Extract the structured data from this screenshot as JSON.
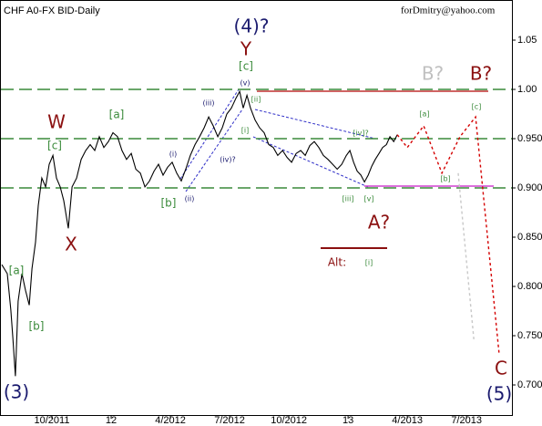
{
  "chart_data": {
    "type": "line",
    "title": "CHF A0-FX BID-Daily",
    "subtitle": "forDmitry@yahoo.com",
    "xlim": [
      -5.63,
      20.3
    ],
    "xticks": [
      {
        "value": -3,
        "label": "10/2011"
      },
      {
        "value": 0,
        "label": "12"
      },
      {
        "value": 3,
        "label": "4/2012"
      },
      {
        "value": 6,
        "label": "7/2012"
      },
      {
        "value": 9,
        "label": "10/2012"
      },
      {
        "value": 12,
        "label": "13"
      },
      {
        "value": 15,
        "label": "4/2013"
      },
      {
        "value": 18,
        "label": "7/2013"
      }
    ],
    "ylim": [
      0.67,
      1.09
    ],
    "yticks": [
      1.05,
      {
        "value": 1,
        "label": "1.00"
      },
      {
        "value": 0.95,
        "label": "0.950"
      },
      {
        "value": 0.9,
        "label": "0.900"
      },
      {
        "value": 0.85,
        "label": "0.850"
      },
      {
        "value": 0.8,
        "label": "0.800"
      },
      {
        "value": 0.75,
        "label": "0.750"
      },
      {
        "value": 0.7,
        "label": "0.700"
      }
    ],
    "levels": [
      1,
      0.95,
      0.9
    ],
    "level_color": "#3a8a3a",
    "series": [
      {
        "color": "#000000",
        "style": "solid",
        "x": [
          -5.54,
          -5.26,
          -5.08,
          -4.98,
          -4.85,
          -4.71,
          -4.52,
          -4.34,
          -4.15,
          -4.01,
          -3.83,
          -3.69,
          -3.51,
          -3.32,
          -3.14,
          -2.95,
          -2.77,
          -2.58,
          -2.4,
          -2.17,
          -1.98,
          -1.75,
          -1.52,
          -1.29,
          -1.06,
          -0.83,
          -0.6,
          -0.37,
          -0.14,
          0.09,
          0.32,
          0.55,
          0.78,
          1.02,
          1.25,
          1.48,
          1.71,
          1.94,
          2.17,
          2.4,
          2.63,
          2.86,
          3.09,
          3.32,
          3.55,
          3.78,
          4.01,
          4.25,
          4.48,
          4.71,
          4.94,
          5.17,
          5.4,
          5.63,
          5.86,
          6.09,
          6.32,
          6.51,
          6.69,
          6.88,
          7.06,
          7.29,
          7.52,
          7.75,
          7.98,
          8.21,
          8.44,
          8.68,
          8.91,
          9.14,
          9.37,
          9.6,
          9.83,
          10.06,
          10.29,
          10.52,
          10.75,
          10.98,
          11.22,
          11.45,
          11.68,
          11.91,
          12.09,
          12.28,
          12.46,
          12.65,
          12.83,
          13.02,
          13.2,
          13.38,
          13.57,
          13.75,
          13.94,
          14.12,
          14.31,
          14.49
        ],
        "values": [
          0.822,
          0.813,
          0.776,
          0.748,
          0.709,
          0.785,
          0.813,
          0.796,
          0.781,
          0.818,
          0.845,
          0.882,
          0.91,
          0.901,
          0.924,
          0.933,
          0.91,
          0.901,
          0.887,
          0.859,
          0.901,
          0.91,
          0.929,
          0.938,
          0.944,
          0.938,
          0.952,
          0.941,
          0.947,
          0.956,
          0.952,
          0.938,
          0.929,
          0.935,
          0.919,
          0.915,
          0.901,
          0.907,
          0.917,
          0.924,
          0.913,
          0.921,
          0.926,
          0.915,
          0.907,
          0.919,
          0.933,
          0.944,
          0.952,
          0.961,
          0.972,
          0.963,
          0.952,
          0.961,
          0.975,
          0.981,
          0.991,
          0.998,
          0.981,
          0.994,
          0.981,
          0.969,
          0.961,
          0.956,
          0.944,
          0.941,
          0.933,
          0.938,
          0.931,
          0.926,
          0.935,
          0.938,
          0.933,
          0.943,
          0.947,
          0.941,
          0.933,
          0.929,
          0.924,
          0.919,
          0.924,
          0.933,
          0.938,
          0.926,
          0.917,
          0.913,
          0.906,
          0.913,
          0.922,
          0.929,
          0.935,
          0.941,
          0.944,
          0.952,
          0.947,
          0.954
        ]
      },
      {
        "color": "#d40000",
        "style": "dotted",
        "x": [
          14.49,
          15.0,
          15.83,
          16.75,
          17.67,
          18.46,
          19.66
        ],
        "values": [
          0.954,
          0.941,
          0.963,
          0.915,
          0.952,
          0.972,
          0.73
        ]
      },
      {
        "color": "#c8c8c8",
        "style": "dotted",
        "x": [
          17.58,
          18.37
        ],
        "values": [
          0.915,
          0.746
        ]
      }
    ],
    "annotations": [
      {
        "text": "(4)?",
        "color": "#1a1a6e"
      },
      {
        "text": "Y",
        "color": "#8b1010"
      },
      {
        "text": "[c]",
        "color": "#3a8a3a"
      },
      {
        "text": "(v)",
        "color": "#1a1a6e"
      },
      {
        "text": "[ii]",
        "color": "#3a8a3a"
      },
      {
        "text": "(iii)",
        "color": "#1a1a6e"
      },
      {
        "text": "[i]",
        "color": "#3a8a3a"
      },
      {
        "text": "(iv)?",
        "color": "#1a1a6e"
      },
      {
        "text": "(i)",
        "color": "#1a1a6e"
      },
      {
        "text": "(ii)",
        "color": "#1a1a6e"
      },
      {
        "text": "[b]",
        "color": "#3a8a3a"
      },
      {
        "text": "[a]",
        "color": "#3a8a3a"
      },
      {
        "text": "W",
        "color": "#8b1010"
      },
      {
        "text": "[c]",
        "color": "#3a8a3a"
      },
      {
        "text": "X",
        "color": "#8b1010"
      },
      {
        "text": "[a]",
        "color": "#3a8a3a"
      },
      {
        "text": "[b]",
        "color": "#3a8a3a"
      },
      {
        "text": "(3)",
        "color": "#1a1a6e"
      },
      {
        "text": "[iv]?",
        "color": "#3a8a3a"
      },
      {
        "text": "[iii]",
        "color": "#3a8a3a"
      },
      {
        "text": "[v]",
        "color": "#3a8a3a"
      },
      {
        "text": "A?",
        "color": "#8b1010"
      },
      {
        "text": "Alt:",
        "color": "#8b1010"
      },
      {
        "text": "[i]",
        "color": "#3a8a3a"
      },
      {
        "text": "B?",
        "color": "#c0c0c0"
      },
      {
        "text": "B?",
        "color": "#8b1010"
      },
      {
        "text": "[a]",
        "color": "#3a8a3a"
      },
      {
        "text": "[c]",
        "color": "#3a8a3a"
      },
      {
        "text": "[b]",
        "color": "#3a8a3a"
      },
      {
        "text": "C",
        "color": "#8b1010"
      },
      {
        "text": "(5)",
        "color": "#1a1a6e"
      }
    ]
  }
}
